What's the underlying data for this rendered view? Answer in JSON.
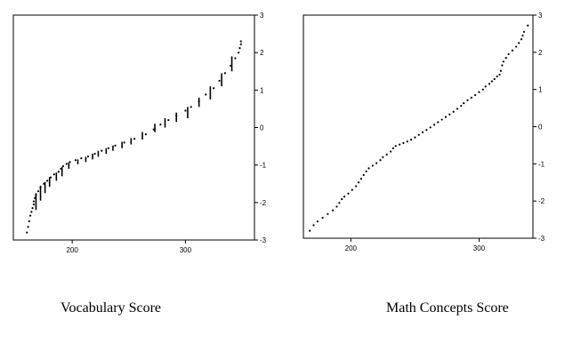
{
  "captions": {
    "left": "Vocabulary Score",
    "right": "Math Concepts Score"
  },
  "colors": {
    "ink": "#000000",
    "background": "#ffffff"
  },
  "chart_data": [
    {
      "type": "scatter",
      "title": "",
      "xlabel": "Vocabulary Score",
      "ylabel": "",
      "xlim": [
        148,
        361
      ],
      "ylim": [
        -3,
        3
      ],
      "x_ticks": [
        200,
        300
      ],
      "y_ticks": [
        3,
        2,
        1,
        0,
        -1,
        -2,
        -3
      ],
      "y_tick_labels": [
        "3",
        "2",
        "1",
        "0",
        "-1",
        "-2",
        "-3"
      ],
      "y_axis_side": "right",
      "grid": false,
      "legend": "none",
      "points": [
        [
          160,
          -2.8
        ],
        [
          161,
          -2.65
        ],
        [
          162,
          -2.5
        ],
        [
          163,
          -2.35
        ],
        [
          164,
          -2.25
        ],
        [
          165,
          -2.15
        ],
        [
          166,
          -2.05
        ],
        [
          166,
          -1.97
        ],
        [
          167,
          -1.88
        ],
        [
          168,
          -1.8
        ],
        [
          170,
          -1.7
        ],
        [
          172,
          -1.6
        ],
        [
          175,
          -1.5
        ],
        [
          178,
          -1.42
        ],
        [
          181,
          -1.33
        ],
        [
          184,
          -1.25
        ],
        [
          188,
          -1.18
        ],
        [
          190,
          -1.1
        ],
        [
          192,
          -1.03
        ],
        [
          195,
          -0.97
        ],
        [
          198,
          -0.92
        ],
        [
          203,
          -0.87
        ],
        [
          208,
          -0.82
        ],
        [
          214,
          -0.77
        ],
        [
          220,
          -0.7
        ],
        [
          226,
          -0.62
        ],
        [
          232,
          -0.55
        ],
        [
          238,
          -0.48
        ],
        [
          246,
          -0.4
        ],
        [
          255,
          -0.3
        ],
        [
          265,
          -0.18
        ],
        [
          272,
          -0.05
        ],
        [
          278,
          0.08
        ],
        [
          285,
          0.2
        ],
        [
          292,
          0.32
        ],
        [
          300,
          0.45
        ],
        [
          305,
          0.55
        ],
        [
          312,
          0.7
        ],
        [
          318,
          0.88
        ],
        [
          325,
          1.05
        ],
        [
          330,
          1.25
        ],
        [
          335,
          1.45
        ],
        [
          340,
          1.65
        ],
        [
          344,
          1.85
        ],
        [
          347,
          2.0
        ],
        [
          348,
          2.12
        ],
        [
          349,
          2.22
        ],
        [
          349,
          2.3
        ]
      ],
      "segments": [
        [
          168,
          -2.2,
          -1.75
        ],
        [
          172,
          -1.95,
          -1.55
        ],
        [
          176,
          -1.75,
          -1.45
        ],
        [
          180,
          -1.58,
          -1.32
        ],
        [
          186,
          -1.42,
          -1.2
        ],
        [
          191,
          -1.3,
          -1.05
        ],
        [
          197,
          -1.1,
          -0.93
        ],
        [
          205,
          -0.98,
          -0.85
        ],
        [
          212,
          -0.92,
          -0.78
        ],
        [
          218,
          -0.85,
          -0.7
        ],
        [
          223,
          -0.78,
          -0.62
        ],
        [
          230,
          -0.7,
          -0.55
        ],
        [
          236,
          -0.62,
          -0.48
        ],
        [
          244,
          -0.55,
          -0.38
        ],
        [
          252,
          -0.45,
          -0.28
        ],
        [
          262,
          -0.32,
          -0.12
        ],
        [
          273,
          -0.12,
          0.1
        ],
        [
          282,
          0.0,
          0.25
        ],
        [
          292,
          0.15,
          0.4
        ],
        [
          302,
          0.25,
          0.55
        ],
        [
          312,
          0.55,
          0.8
        ],
        [
          322,
          0.75,
          1.1
        ],
        [
          332,
          1.1,
          1.45
        ],
        [
          341,
          1.5,
          1.9
        ]
      ]
    },
    {
      "type": "scatter",
      "title": "",
      "xlabel": "Math Concepts Score",
      "ylabel": "",
      "xlim": [
        163,
        342
      ],
      "ylim": [
        -3,
        3
      ],
      "x_ticks": [
        200,
        300
      ],
      "y_ticks": [
        3,
        2,
        1,
        0,
        -1,
        -2,
        -3
      ],
      "y_tick_labels": [
        "3",
        "2",
        "1",
        "0",
        "-1",
        "-2",
        "-3"
      ],
      "y_axis_side": "right",
      "grid": false,
      "legend": "none",
      "points": [
        [
          168,
          -2.8
        ],
        [
          171,
          -2.65
        ],
        [
          174,
          -2.55
        ],
        [
          178,
          -2.45
        ],
        [
          182,
          -2.35
        ],
        [
          186,
          -2.25
        ],
        [
          189,
          -2.15
        ],
        [
          191,
          -2.05
        ],
        [
          193,
          -1.95
        ],
        [
          195,
          -1.88
        ],
        [
          198,
          -1.8
        ],
        [
          201,
          -1.7
        ],
        [
          204,
          -1.6
        ],
        [
          206,
          -1.5
        ],
        [
          208,
          -1.4
        ],
        [
          210,
          -1.3
        ],
        [
          212,
          -1.2
        ],
        [
          214,
          -1.12
        ],
        [
          217,
          -1.05
        ],
        [
          220,
          -0.98
        ],
        [
          223,
          -0.9
        ],
        [
          225,
          -0.82
        ],
        [
          228,
          -0.75
        ],
        [
          231,
          -0.67
        ],
        [
          233,
          -0.58
        ],
        [
          235,
          -0.52
        ],
        [
          238,
          -0.48
        ],
        [
          241,
          -0.44
        ],
        [
          244,
          -0.4
        ],
        [
          247,
          -0.35
        ],
        [
          250,
          -0.29
        ],
        [
          253,
          -0.22
        ],
        [
          256,
          -0.15
        ],
        [
          259,
          -0.09
        ],
        [
          262,
          -0.02
        ],
        [
          265,
          0.05
        ],
        [
          268,
          0.12
        ],
        [
          271,
          0.19
        ],
        [
          274,
          0.26
        ],
        [
          277,
          0.33
        ],
        [
          280,
          0.4
        ],
        [
          283,
          0.48
        ],
        [
          286,
          0.56
        ],
        [
          288,
          0.63
        ],
        [
          291,
          0.71
        ],
        [
          294,
          0.78
        ],
        [
          297,
          0.85
        ],
        [
          300,
          0.93
        ],
        [
          303,
          1.0
        ],
        [
          305,
          1.08
        ],
        [
          308,
          1.15
        ],
        [
          310,
          1.22
        ],
        [
          312,
          1.28
        ],
        [
          314,
          1.35
        ],
        [
          316,
          1.4
        ],
        [
          317,
          1.5
        ],
        [
          318,
          1.65
        ],
        [
          319,
          1.75
        ],
        [
          321,
          1.85
        ],
        [
          323,
          1.95
        ],
        [
          326,
          2.05
        ],
        [
          329,
          2.15
        ],
        [
          331,
          2.25
        ],
        [
          333,
          2.35
        ],
        [
          334,
          2.45
        ],
        [
          335,
          2.55
        ],
        [
          338,
          2.72
        ]
      ]
    }
  ]
}
